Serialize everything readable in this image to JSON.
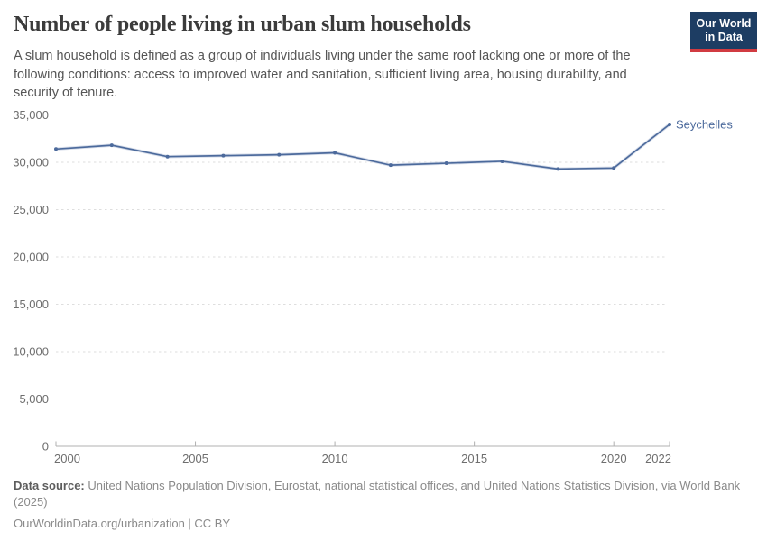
{
  "header": {
    "title": "Number of people living in urban slum households",
    "subtitle": "A slum household is defined as a group of individuals living under the same roof lacking one or more of the following conditions: access to improved water and sanitation, sufficient living area, housing durability, and security of tenure.",
    "logo": {
      "line1": "Our World",
      "line2": "in Data"
    }
  },
  "chart_data": {
    "type": "line",
    "title": "Number of people living in urban slum households",
    "x": [
      2000,
      2002,
      2004,
      2006,
      2008,
      2010,
      2012,
      2014,
      2016,
      2018,
      2020,
      2022
    ],
    "series": [
      {
        "name": "Seychelles",
        "color": "#4c6a9c",
        "values": [
          31400,
          31800,
          30600,
          30700,
          30800,
          31000,
          29700,
          29900,
          30100,
          29300,
          29400,
          34000
        ]
      }
    ],
    "xlabel": "",
    "ylabel": "",
    "xlim": [
      2000,
      2022
    ],
    "ylim": [
      0,
      35000
    ],
    "yticks": [
      0,
      5000,
      10000,
      15000,
      20000,
      25000,
      30000,
      35000
    ],
    "ytick_labels": [
      "0",
      "5,000",
      "10,000",
      "15,000",
      "20,000",
      "25,000",
      "30,000",
      "35,000"
    ],
    "xticks": [
      2000,
      2005,
      2010,
      2015,
      2020,
      2022
    ],
    "xtick_labels": [
      "2000",
      "2005",
      "2010",
      "2015",
      "2020",
      "2022"
    ],
    "grid": "horizontal-dashed",
    "legend_position": "end-of-line-label"
  },
  "footer": {
    "source_label": "Data source:",
    "source_text": " United Nations Population Division, Eurostat, national statistical offices, and United Nations Statistics Division, via World Bank (2025)",
    "link_line": "OurWorldinData.org/urbanization | CC BY"
  },
  "colors": {
    "line": "#4c6a9c",
    "line_halo": "#b9c5da",
    "gridline": "#dedede",
    "axis": "#b0b0b0",
    "tick_label": "#6e6e6e",
    "logo_bg": "#1d3d63",
    "logo_stripe": "#d13b41"
  }
}
